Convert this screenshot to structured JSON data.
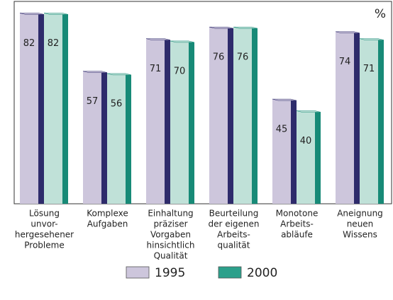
{
  "chart_data": {
    "type": "bar",
    "unit_label": "%",
    "categories": [
      [
        "Lösung",
        "unvor-",
        "hergesehener",
        "Probleme"
      ],
      [
        "Komplexe",
        "Aufgaben"
      ],
      [
        "Einhaltung",
        "präziser",
        "Vorgaben",
        "hinsichtlich",
        "Qualität"
      ],
      [
        "Beurteilung",
        "der eigenen",
        "Arbeits-",
        "qualität"
      ],
      [
        "Monotone",
        "Arbeits-",
        "abläufe"
      ],
      [
        "Aneignung",
        "neuen",
        "Wissens"
      ]
    ],
    "series": [
      {
        "name": "1995",
        "color": "#cdc6dc",
        "side_color": "#2e2b6b",
        "values": [
          82,
          57,
          71,
          76,
          45,
          74
        ]
      },
      {
        "name": "2000",
        "color": "#c0e1d8",
        "side_color": "#178a77",
        "legend_color": "#2ca08b",
        "values": [
          82,
          56,
          70,
          76,
          40,
          71
        ]
      }
    ],
    "ylim": [
      0,
      87
    ]
  }
}
